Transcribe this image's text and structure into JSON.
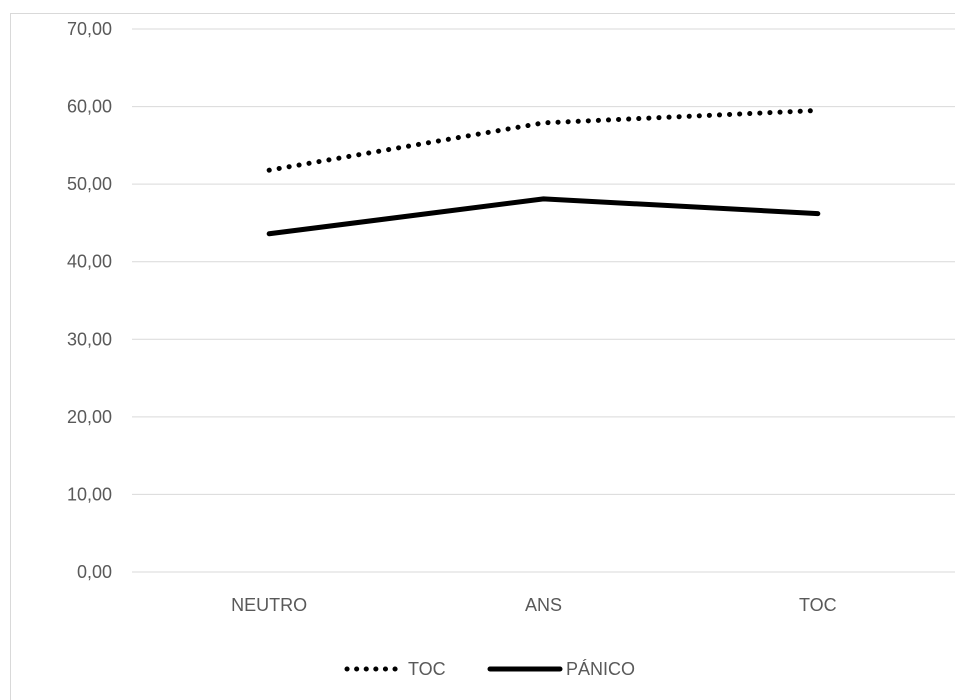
{
  "chart_data": {
    "type": "line",
    "title": "",
    "xlabel": "",
    "ylabel": "",
    "categories": [
      "NEUTRO",
      "ANS",
      "TOC"
    ],
    "ylim": [
      0,
      70
    ],
    "y_ticks": [
      "0,00",
      "10,00",
      "20,00",
      "30,00",
      "40,00",
      "50,00",
      "60,00",
      "70,00"
    ],
    "y_tick_values": [
      0,
      10,
      20,
      30,
      40,
      50,
      60,
      70
    ],
    "grid": true,
    "legend_position": "bottom",
    "series": [
      {
        "name": "TOC",
        "values": [
          51.8,
          57.9,
          59.5
        ],
        "style": "dotted",
        "color": "#000000"
      },
      {
        "name": "PÁNICO",
        "values": [
          43.6,
          48.1,
          46.2
        ],
        "style": "solid",
        "color": "#000000"
      }
    ]
  }
}
